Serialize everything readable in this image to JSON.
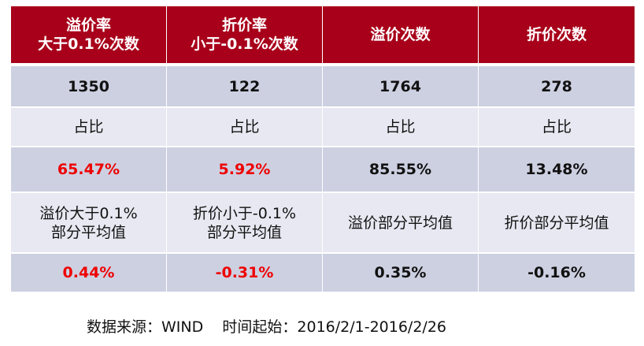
{
  "headers": [
    "溢价率\n大于0.1%次数",
    "折价率\n小于-0.1%次数",
    "溢价次数",
    "折价次数"
  ],
  "counts": [
    "1350",
    "122",
    "1764",
    "278"
  ],
  "share_label": "占比",
  "shares": [
    "65.47%",
    "5.92%",
    "85.55%",
    "13.48%"
  ],
  "avg_labels": [
    "溢价大于0.1%\n部分平均值",
    "折价小于-0.1%\n部分平均值",
    "溢价部分平均值",
    "折价部分平均值"
  ],
  "averages": [
    "0.44%",
    "-0.31%",
    "0.35%",
    "-0.16%"
  ],
  "footer": "数据来源：WIND    时间起始：2016/2/1-2016/2/26",
  "colors": {
    "header_bg": "#a8001a",
    "row_dark": "#cdd0e1",
    "row_light": "#e7e8f1",
    "highlight": "#ee0000"
  }
}
